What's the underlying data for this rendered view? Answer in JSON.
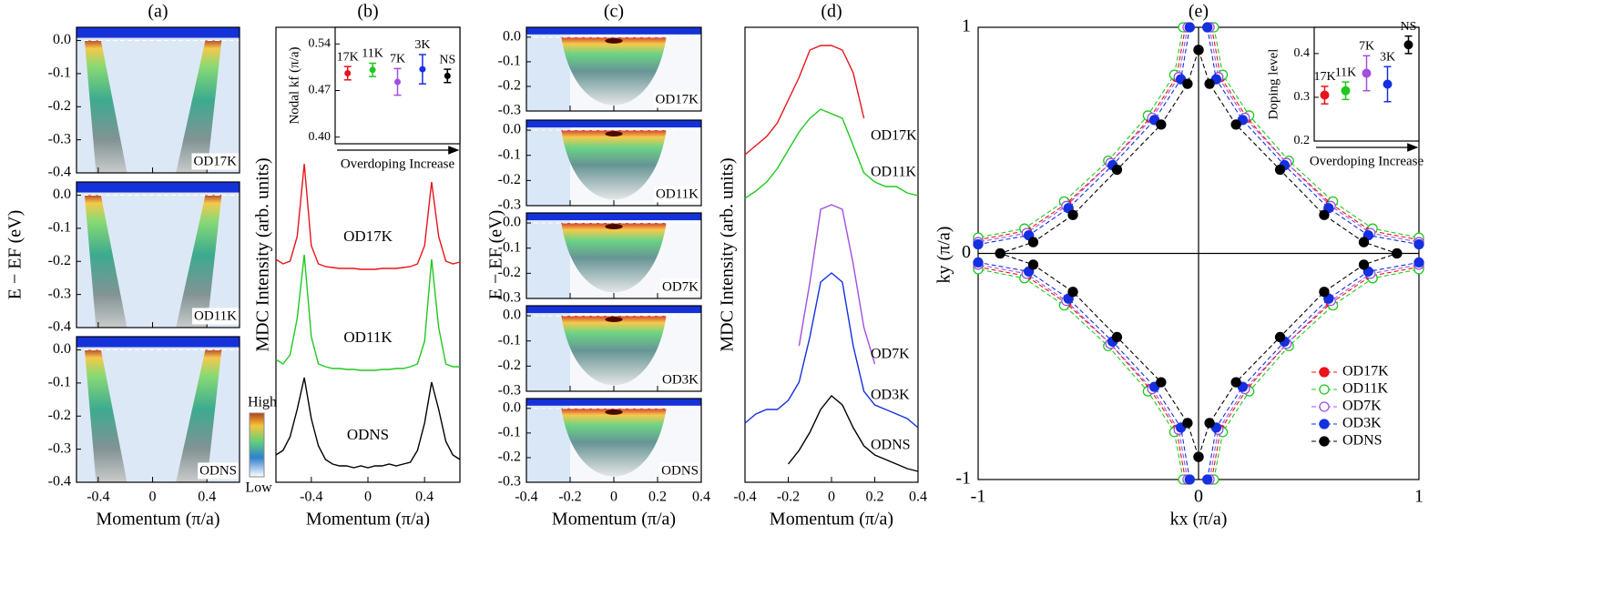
{
  "chart_data": [
    {
      "type": "heatmap",
      "title": "(a)",
      "xlabel": "Momentum (π/a)",
      "ylabel": "E − EF (eV)",
      "xlim": [
        -0.56,
        0.64
      ],
      "xticks": [
        -0.4,
        0,
        0.4
      ],
      "ylim": [
        -0.4,
        0.04
      ],
      "yticks": [
        {
          "value": 0,
          "label": "0.0"
        },
        -0.1,
        -0.2,
        -0.3,
        -0.4
      ],
      "panels": [
        "OD17K",
        "OD11K",
        "ODNS"
      ],
      "colorbar": {
        "high": "High",
        "low": "Low"
      }
    },
    {
      "type": "line",
      "title": "(b)",
      "xlabel": "Momentum (π/a)",
      "ylabel": "MDC Intensity (arb. units)",
      "xlim": [
        -0.65,
        0.65
      ],
      "xticks": [
        -0.4,
        0,
        0.4
      ],
      "ylim": [
        0,
        5
      ],
      "x": [
        -0.65,
        -0.6,
        -0.55,
        -0.5,
        -0.45,
        -0.4,
        -0.35,
        -0.3,
        -0.25,
        -0.2,
        -0.15,
        -0.1,
        -0.05,
        0,
        0.05,
        0.1,
        0.15,
        0.2,
        0.25,
        0.3,
        0.35,
        0.4,
        0.45,
        0.5,
        0.55,
        0.6,
        0.65
      ],
      "series": [
        {
          "name": "OD17K",
          "color": "#e8141b",
          "values": [
            2.45,
            2.4,
            2.43,
            2.7,
            3.5,
            2.6,
            2.4,
            2.37,
            2.36,
            2.35,
            2.35,
            2.35,
            2.34,
            2.34,
            2.34,
            2.35,
            2.35,
            2.35,
            2.36,
            2.37,
            2.4,
            2.6,
            3.3,
            2.7,
            2.43,
            2.4,
            2.42
          ]
        },
        {
          "name": "OD11K",
          "color": "#1fc81f",
          "values": [
            1.35,
            1.3,
            1.4,
            1.8,
            2.5,
            1.6,
            1.3,
            1.27,
            1.25,
            1.25,
            1.24,
            1.24,
            1.23,
            1.23,
            1.23,
            1.24,
            1.24,
            1.25,
            1.25,
            1.27,
            1.3,
            1.55,
            2.45,
            1.7,
            1.3,
            1.27,
            1.27
          ]
        },
        {
          "name": "ODNS",
          "color": "#000000",
          "values": [
            0.3,
            0.35,
            0.5,
            0.8,
            1.15,
            0.7,
            0.4,
            0.25,
            0.2,
            0.18,
            0.18,
            0.16,
            0.18,
            0.16,
            0.18,
            0.18,
            0.2,
            0.18,
            0.2,
            0.22,
            0.35,
            0.65,
            1.1,
            0.8,
            0.45,
            0.3,
            0.25
          ]
        }
      ],
      "inset": {
        "type": "errorbar",
        "ylabel": "Nodal kf (π/a)",
        "xlabel": "Overdoping Increase",
        "ylim": [
          0.39,
          0.565
        ],
        "yticks": [
          {
            "value": 0.4,
            "label": "0.40"
          },
          0.47,
          0.54
        ],
        "categories": [
          "17K",
          "11K",
          "7K",
          "3K",
          "NS"
        ],
        "colors": [
          "#e8141b",
          "#1fc81f",
          "#a14fe0",
          "#1430e0",
          "#000000"
        ],
        "values": [
          0.496,
          0.501,
          0.483,
          0.502,
          0.492
        ],
        "errors": [
          0.01,
          0.01,
          0.02,
          0.022,
          0.01
        ]
      }
    },
    {
      "type": "heatmap",
      "title": "(c)",
      "xlabel": "Momentum (π/a)",
      "ylabel": "E − EF (eV)",
      "xlim": [
        -0.4,
        0.4
      ],
      "xticks": [
        -0.4,
        -0.2,
        0,
        0.2,
        0.4
      ],
      "ylim": [
        -0.3,
        0.04
      ],
      "yticks": [
        {
          "value": 0,
          "label": "0.0"
        },
        -0.1,
        -0.2,
        -0.3
      ],
      "panels": [
        "OD17K",
        "OD11K",
        "OD7K",
        "OD3K",
        "ODNS"
      ]
    },
    {
      "type": "line",
      "title": "(d)",
      "xlabel": "Momentum (π/a)",
      "ylabel": "MDC Intensity (arb. units)",
      "xlim": [
        -0.4,
        0.4
      ],
      "xticks": [
        -0.4,
        -0.2,
        0,
        0.2,
        0.4
      ],
      "ylim": [
        0,
        5
      ],
      "x": [
        -0.4,
        -0.35,
        -0.3,
        -0.25,
        -0.2,
        -0.15,
        -0.1,
        -0.05,
        0,
        0.05,
        0.1,
        0.15,
        0.2,
        0.25,
        0.3,
        0.35,
        0.4
      ],
      "series": [
        {
          "name": "OD17K",
          "color": "#e8141b",
          "values": [
            3.6,
            3.7,
            3.8,
            3.95,
            4.2,
            4.45,
            4.75,
            4.8,
            4.8,
            4.75,
            4.5,
            4.0,
            null,
            null,
            null,
            null,
            null
          ]
        },
        {
          "name": "OD11K",
          "color": "#1fc81f",
          "values": [
            3.12,
            3.2,
            3.3,
            3.45,
            3.65,
            3.85,
            4.0,
            4.1,
            4.05,
            4.0,
            3.7,
            3.4,
            3.3,
            3.25,
            3.25,
            3.18,
            3.15
          ]
        },
        {
          "name": "OD7K",
          "color": "#a14fe0",
          "values": [
            null,
            null,
            null,
            null,
            null,
            1.5,
            2.2,
            3.0,
            3.05,
            3.0,
            2.4,
            1.7,
            1.3,
            null,
            null,
            null,
            null
          ]
        },
        {
          "name": "OD3K",
          "color": "#1430e0",
          "values": [
            0.65,
            0.75,
            0.8,
            0.8,
            0.9,
            1.1,
            1.6,
            2.2,
            2.3,
            2.2,
            1.5,
            1.0,
            0.85,
            0.8,
            0.75,
            0.7,
            0.6
          ]
        },
        {
          "name": "ODNS",
          "color": "#000000",
          "values": [
            null,
            null,
            null,
            null,
            0.2,
            0.35,
            0.55,
            0.8,
            0.95,
            0.85,
            0.6,
            0.4,
            0.3,
            0.25,
            0.2,
            0.15,
            0.12
          ]
        }
      ]
    },
    {
      "type": "scatter",
      "title": "(e)",
      "xlabel": "kx (π/a)",
      "ylabel": "ky (π/a)",
      "xlim": [
        -1,
        1
      ],
      "ylim": [
        -1,
        1
      ],
      "xticks": [
        -1,
        0,
        1
      ],
      "yticks": [
        -1,
        0,
        1
      ],
      "legend": "lower right",
      "series": [
        {
          "name": "OD17K",
          "color": "#e8141b",
          "filled": true,
          "x": [
            0.06,
            0.1,
            0.22,
            0.4,
            0.6,
            0.78,
            1.0,
            null,
            -0.06,
            -0.1,
            -0.22,
            -0.4,
            -0.6,
            -0.78,
            -1.0,
            null,
            -0.06,
            -0.1,
            -0.22,
            -0.4,
            -0.6,
            -0.78,
            -1.0,
            null,
            0.06,
            0.1,
            0.22,
            0.4,
            0.6,
            0.78,
            1.0
          ],
          "y": [
            1.0,
            0.78,
            0.6,
            0.4,
            0.22,
            0.1,
            0.06,
            null,
            1.0,
            0.78,
            0.6,
            0.4,
            0.22,
            0.1,
            0.06,
            null,
            -1.0,
            -0.78,
            -0.6,
            -0.4,
            -0.22,
            -0.1,
            -0.06,
            null,
            -1.0,
            -0.78,
            -0.6,
            -0.4,
            -0.22,
            -0.1,
            -0.06
          ]
        },
        {
          "name": "OD11K",
          "color": "#1fc81f",
          "filled": false,
          "x": [
            0.07,
            0.11,
            0.23,
            0.41,
            0.61,
            0.79,
            1.0,
            null,
            -0.07,
            -0.11,
            -0.23,
            -0.41,
            -0.61,
            -0.79,
            -1.0,
            null,
            -0.07,
            -0.11,
            -0.23,
            -0.41,
            -0.61,
            -0.79,
            -1.0,
            null,
            0.07,
            0.11,
            0.23,
            0.41,
            0.61,
            0.79,
            1.0
          ],
          "y": [
            1.0,
            0.79,
            0.61,
            0.41,
            0.23,
            0.11,
            0.07,
            null,
            1.0,
            0.79,
            0.61,
            0.41,
            0.23,
            0.11,
            0.07,
            null,
            -1.0,
            -0.79,
            -0.61,
            -0.41,
            -0.23,
            -0.11,
            -0.07,
            null,
            -1.0,
            -0.79,
            -0.61,
            -0.41,
            -0.23,
            -0.11,
            -0.07
          ]
        },
        {
          "name": "OD7K",
          "color": "#a14fe0",
          "filled": false,
          "x": [
            0.05,
            0.09,
            0.21,
            0.4,
            0.6,
            0.78,
            1.0,
            null,
            -0.05,
            -0.09,
            -0.21,
            -0.4,
            -0.6,
            -0.78,
            -1.0,
            null,
            -0.05,
            -0.09,
            -0.21,
            -0.4,
            -0.6,
            -0.78,
            -1.0,
            null,
            0.05,
            0.09,
            0.21,
            0.4,
            0.6,
            0.78,
            1.0
          ],
          "y": [
            1.0,
            0.78,
            0.6,
            0.4,
            0.21,
            0.09,
            0.05,
            null,
            1.0,
            0.78,
            0.6,
            0.4,
            0.21,
            0.09,
            0.05,
            null,
            -1.0,
            -0.78,
            -0.6,
            -0.4,
            -0.21,
            -0.09,
            -0.05,
            null,
            -1.0,
            -0.78,
            -0.6,
            -0.4,
            -0.21,
            -0.09,
            -0.05
          ]
        },
        {
          "name": "OD3K",
          "color": "#1430e0",
          "filled": true,
          "x": [
            0.04,
            0.08,
            0.2,
            0.39,
            0.59,
            0.77,
            1.0,
            null,
            -0.04,
            -0.08,
            -0.2,
            -0.39,
            -0.59,
            -0.77,
            -1.0,
            null,
            -0.04,
            -0.08,
            -0.2,
            -0.39,
            -0.59,
            -0.77,
            -1.0,
            null,
            0.04,
            0.08,
            0.2,
            0.39,
            0.59,
            0.77,
            1.0
          ],
          "y": [
            1.0,
            0.77,
            0.59,
            0.39,
            0.2,
            0.08,
            0.04,
            null,
            1.0,
            0.77,
            0.59,
            0.39,
            0.2,
            0.08,
            0.04,
            null,
            -1.0,
            -0.77,
            -0.59,
            -0.39,
            -0.2,
            -0.08,
            -0.04,
            null,
            -1.0,
            -0.77,
            -0.59,
            -0.39,
            -0.2,
            -0.08,
            -0.04
          ]
        },
        {
          "name": "ODNS",
          "color": "#000000",
          "filled": true,
          "x": [
            0,
            0.05,
            0.17,
            0.37,
            0.57,
            0.75,
            0.9,
            null,
            0,
            -0.05,
            -0.17,
            -0.37,
            -0.57,
            -0.75,
            -0.9,
            null,
            0,
            -0.05,
            -0.17,
            -0.37,
            -0.57,
            -0.75,
            -0.9,
            null,
            0,
            0.05,
            0.17,
            0.37,
            0.57,
            0.75,
            0.9
          ],
          "y": [
            0.9,
            0.75,
            0.57,
            0.37,
            0.17,
            0.05,
            0,
            null,
            0.9,
            0.75,
            0.57,
            0.37,
            0.17,
            0.05,
            0,
            null,
            -0.9,
            -0.75,
            -0.57,
            -0.37,
            -0.17,
            -0.05,
            0,
            null,
            -0.9,
            -0.75,
            -0.57,
            -0.37,
            -0.17,
            -0.05,
            0
          ]
        }
      ],
      "inset": {
        "type": "errorbar",
        "ylabel": "Doping level",
        "xlabel": "Overdoping Increase",
        "ylim": [
          0.2,
          0.46
        ],
        "yticks": [
          0.2,
          0.3,
          0.4
        ],
        "categories": [
          "17K",
          "11K",
          "7K",
          "3K",
          "NS"
        ],
        "colors": [
          "#e8141b",
          "#1fc81f",
          "#a14fe0",
          "#1430e0",
          "#000000"
        ],
        "values": [
          0.305,
          0.315,
          0.355,
          0.33,
          0.42
        ],
        "errors": [
          0.02,
          0.02,
          0.04,
          0.04,
          0.02
        ]
      }
    }
  ]
}
